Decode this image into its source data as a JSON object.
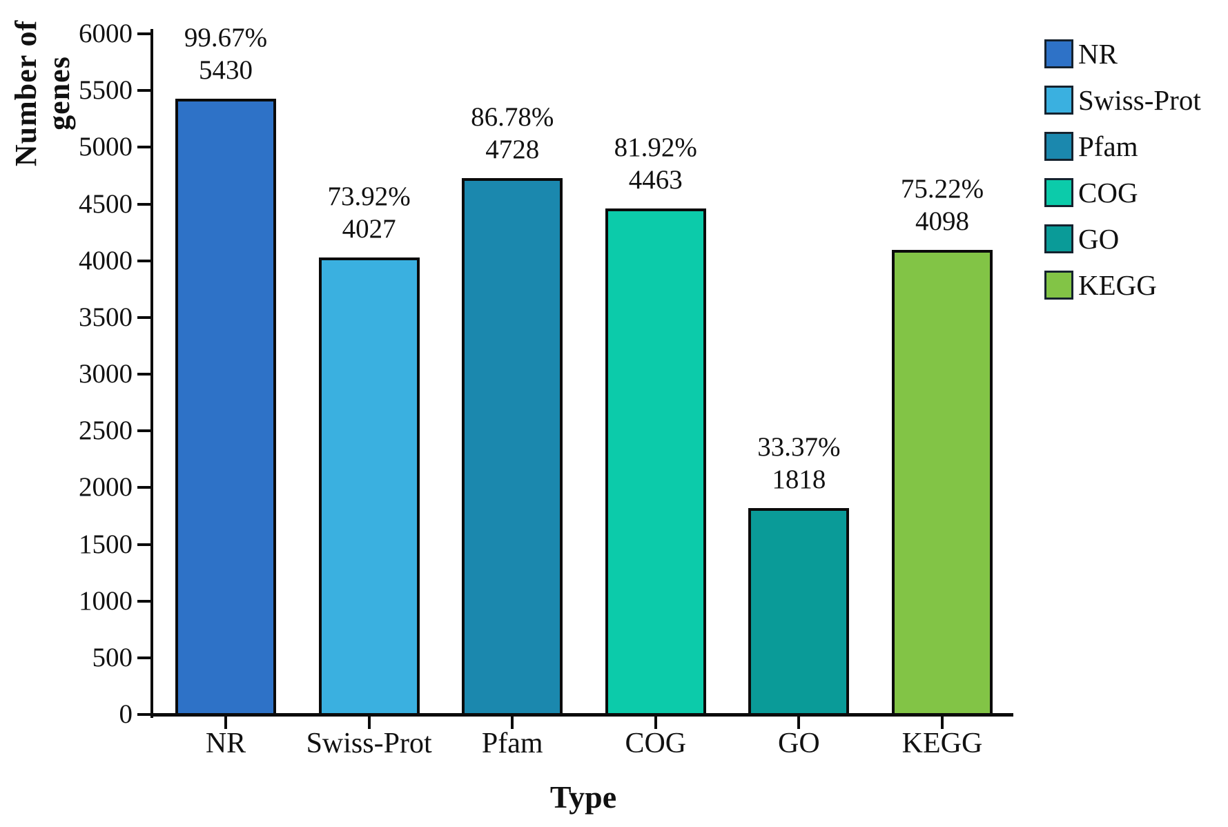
{
  "chart_data": {
    "type": "bar",
    "title": "",
    "xlabel": "Type",
    "ylabel": "Number of genes",
    "categories": [
      "NR",
      "Swiss-Prot",
      "Pfam",
      "COG",
      "GO",
      "KEGG"
    ],
    "values": [
      5430,
      4027,
      4728,
      4463,
      1818,
      4098
    ],
    "percent_labels": [
      "99.67%",
      "73.92%",
      "86.78%",
      "81.92%",
      "33.37%",
      "75.22%"
    ],
    "bar_colors": [
      "#2e72c7",
      "#3ab0e0",
      "#1b88ae",
      "#0ccbaa",
      "#0a9b98",
      "#82c446"
    ],
    "ylim": [
      0,
      6000
    ],
    "ytick_step": 500,
    "ytick_labels": [
      "0",
      "500",
      "1000",
      "1500",
      "2000",
      "2500",
      "3000",
      "3500",
      "4000",
      "4500",
      "5000",
      "5500",
      "6000"
    ],
    "grid": false,
    "axis_color": "#0b0b0b",
    "text_color": "#111111",
    "legend": {
      "position": "right",
      "entries": [
        {
          "label": "NR",
          "color": "#2e72c7"
        },
        {
          "label": "Swiss-Prot",
          "color": "#3ab0e0"
        },
        {
          "label": "Pfam",
          "color": "#1b88ae"
        },
        {
          "label": "COG",
          "color": "#0ccbaa"
        },
        {
          "label": "GO",
          "color": "#0a9b98"
        },
        {
          "label": "KEGG",
          "color": "#82c446"
        }
      ]
    }
  }
}
